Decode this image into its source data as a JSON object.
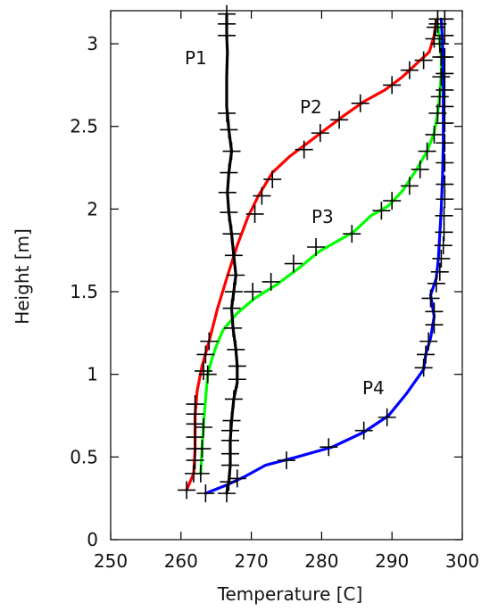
{
  "chart_data": {
    "type": "line",
    "title": "",
    "xlabel": "Temperature [C]",
    "ylabel": "Height [m]",
    "xlim": [
      250,
      300
    ],
    "ylim": [
      0,
      3.2
    ],
    "xticks": [
      "250",
      "260",
      "270",
      "280",
      "290",
      "300"
    ],
    "yticks": [
      "0",
      "0.5",
      "1",
      "1.5",
      "2",
      "2.5",
      "3"
    ],
    "grid": false,
    "legend": "none; series labelled inline",
    "series": [
      {
        "name": "P1",
        "color": "#000000",
        "points": [
          [
            266.5,
            0.28
          ],
          [
            266.8,
            0.35
          ],
          [
            267.0,
            0.45
          ],
          [
            267.0,
            0.6
          ],
          [
            267.2,
            0.72
          ],
          [
            267.5,
            0.85
          ],
          [
            268.0,
            0.95
          ],
          [
            268.0,
            1.05
          ],
          [
            267.8,
            1.15
          ],
          [
            267.4,
            1.28
          ],
          [
            267.2,
            1.4
          ],
          [
            267.5,
            1.5
          ],
          [
            267.8,
            1.6
          ],
          [
            267.5,
            1.72
          ],
          [
            267.2,
            1.85
          ],
          [
            266.8,
            1.98
          ],
          [
            266.6,
            2.1
          ],
          [
            266.8,
            2.22
          ],
          [
            267.2,
            2.35
          ],
          [
            266.8,
            2.48
          ],
          [
            266.5,
            2.62
          ],
          [
            266.5,
            2.8
          ],
          [
            266.6,
            2.95
          ],
          [
            266.5,
            3.05
          ],
          [
            266.5,
            3.18
          ]
        ],
        "markers": [
          [
            266.5,
            0.28
          ],
          [
            266.8,
            0.35
          ],
          [
            267.0,
            0.45
          ],
          [
            267.0,
            0.52
          ],
          [
            267.0,
            0.6
          ],
          [
            267.0,
            0.66
          ],
          [
            267.2,
            0.72
          ],
          [
            267.5,
            0.85
          ],
          [
            268.0,
            0.97
          ],
          [
            268.0,
            1.05
          ],
          [
            267.8,
            1.15
          ],
          [
            267.4,
            1.28
          ],
          [
            267.2,
            1.4
          ],
          [
            267.5,
            1.5
          ],
          [
            267.8,
            1.6
          ],
          [
            267.5,
            1.72
          ],
          [
            267.2,
            1.85
          ],
          [
            266.8,
            1.98
          ],
          [
            266.6,
            2.1
          ],
          [
            266.8,
            2.22
          ],
          [
            267.2,
            2.35
          ],
          [
            266.8,
            2.48
          ],
          [
            266.5,
            2.58
          ],
          [
            266.5,
            3.05
          ],
          [
            266.5,
            3.12
          ],
          [
            266.5,
            3.18
          ]
        ]
      },
      {
        "name": "P2",
        "color": "#ff0000",
        "points": [
          [
            260.8,
            0.3
          ],
          [
            261.8,
            0.4
          ],
          [
            262.0,
            0.55
          ],
          [
            262.0,
            0.75
          ],
          [
            262.3,
            0.9
          ],
          [
            263.0,
            1.05
          ],
          [
            264.0,
            1.2
          ],
          [
            265.2,
            1.4
          ],
          [
            266.5,
            1.58
          ],
          [
            268.0,
            1.78
          ],
          [
            269.5,
            1.95
          ],
          [
            271.0,
            2.08
          ],
          [
            273.0,
            2.22
          ],
          [
            275.5,
            2.32
          ],
          [
            278.0,
            2.4
          ],
          [
            280.5,
            2.48
          ],
          [
            283.0,
            2.56
          ],
          [
            286.0,
            2.65
          ],
          [
            289.0,
            2.72
          ],
          [
            291.5,
            2.8
          ],
          [
            293.5,
            2.88
          ],
          [
            295.3,
            2.95
          ],
          [
            296.0,
            3.05
          ],
          [
            296.3,
            3.14
          ]
        ],
        "markers": [
          [
            260.8,
            0.3
          ],
          [
            261.8,
            0.4
          ],
          [
            262.0,
            0.48
          ],
          [
            262.0,
            0.55
          ],
          [
            262.0,
            0.62
          ],
          [
            262.0,
            0.7
          ],
          [
            262.0,
            0.76
          ],
          [
            262.0,
            0.82
          ],
          [
            263.2,
            1.02
          ],
          [
            263.5,
            1.12
          ],
          [
            264.0,
            1.2
          ],
          [
            270.5,
            1.97
          ],
          [
            271.5,
            2.08
          ],
          [
            273.0,
            2.18
          ],
          [
            277.5,
            2.36
          ],
          [
            279.8,
            2.46
          ],
          [
            282.5,
            2.54
          ],
          [
            285.5,
            2.64
          ],
          [
            290.0,
            2.75
          ],
          [
            292.5,
            2.84
          ],
          [
            294.5,
            2.9
          ],
          [
            296.0,
            3.03
          ],
          [
            296.2,
            3.1
          ],
          [
            296.5,
            3.15
          ]
        ]
      },
      {
        "name": "P3",
        "color": "#00ff00",
        "points": [
          [
            262.8,
            0.4
          ],
          [
            263.0,
            0.55
          ],
          [
            263.2,
            0.7
          ],
          [
            263.5,
            0.85
          ],
          [
            263.8,
            1.0
          ],
          [
            264.3,
            1.08
          ],
          [
            265.0,
            1.17
          ],
          [
            266.0,
            1.27
          ],
          [
            268.0,
            1.37
          ],
          [
            270.5,
            1.46
          ],
          [
            273.5,
            1.54
          ],
          [
            277.0,
            1.65
          ],
          [
            279.5,
            1.74
          ],
          [
            282.0,
            1.8
          ],
          [
            284.5,
            1.86
          ],
          [
            287.0,
            1.96
          ],
          [
            289.5,
            2.02
          ],
          [
            291.5,
            2.11
          ],
          [
            293.5,
            2.24
          ],
          [
            295.0,
            2.35
          ],
          [
            296.0,
            2.46
          ],
          [
            296.5,
            2.58
          ],
          [
            296.8,
            2.7
          ],
          [
            297.0,
            2.82
          ],
          [
            297.0,
            2.92
          ],
          [
            296.8,
            3.0
          ],
          [
            296.5,
            3.12
          ]
        ],
        "markers": [
          [
            262.8,
            0.4
          ],
          [
            263.0,
            0.55
          ],
          [
            263.2,
            0.68
          ],
          [
            263.8,
            1.0
          ],
          [
            270.2,
            1.5
          ],
          [
            272.8,
            1.56
          ],
          [
            276.0,
            1.67
          ],
          [
            279.2,
            1.77
          ],
          [
            284.3,
            1.85
          ],
          [
            288.5,
            1.99
          ],
          [
            290.0,
            2.05
          ],
          [
            292.5,
            2.14
          ],
          [
            294.0,
            2.24
          ],
          [
            295.0,
            2.35
          ],
          [
            296.0,
            2.45
          ],
          [
            296.5,
            2.58
          ],
          [
            296.8,
            2.68
          ],
          [
            297.0,
            2.8
          ],
          [
            297.0,
            2.92
          ],
          [
            296.8,
            3.0
          ],
          [
            296.5,
            3.12
          ]
        ]
      },
      {
        "name": "P4",
        "color": "#0000ff",
        "points": [
          [
            263.5,
            0.28
          ],
          [
            266.5,
            0.33
          ],
          [
            269.0,
            0.38
          ],
          [
            272.0,
            0.45
          ],
          [
            276.5,
            0.5
          ],
          [
            281.5,
            0.56
          ],
          [
            286.0,
            0.65
          ],
          [
            289.5,
            0.75
          ],
          [
            292.0,
            0.88
          ],
          [
            294.5,
            1.03
          ],
          [
            294.8,
            1.12
          ],
          [
            295.5,
            1.22
          ],
          [
            296.0,
            1.35
          ],
          [
            295.5,
            1.48
          ],
          [
            296.3,
            1.58
          ],
          [
            296.6,
            1.7
          ],
          [
            296.8,
            1.85
          ],
          [
            297.0,
            2.0
          ],
          [
            297.2,
            2.2
          ],
          [
            297.3,
            2.4
          ],
          [
            297.3,
            2.6
          ],
          [
            297.3,
            2.8
          ],
          [
            297.2,
            3.0
          ],
          [
            297.0,
            3.15
          ]
        ],
        "markers": [
          [
            263.5,
            0.28
          ],
          [
            268.0,
            0.37
          ],
          [
            275.0,
            0.48
          ],
          [
            281.0,
            0.56
          ],
          [
            286.0,
            0.66
          ],
          [
            289.3,
            0.74
          ],
          [
            294.5,
            1.04
          ],
          [
            294.8,
            1.12
          ],
          [
            295.2,
            1.2
          ],
          [
            296.0,
            1.3
          ],
          [
            296.0,
            1.38
          ],
          [
            295.5,
            1.46
          ],
          [
            296.3,
            1.55
          ],
          [
            296.8,
            1.62
          ],
          [
            297.0,
            1.7
          ],
          [
            297.3,
            1.78
          ],
          [
            297.4,
            1.86
          ],
          [
            297.4,
            1.96
          ],
          [
            297.5,
            2.06
          ],
          [
            297.5,
            2.15
          ],
          [
            297.5,
            2.28
          ],
          [
            297.5,
            2.4
          ],
          [
            297.5,
            2.52
          ],
          [
            297.5,
            2.62
          ],
          [
            297.5,
            2.72
          ],
          [
            297.5,
            2.82
          ],
          [
            297.5,
            2.92
          ],
          [
            297.5,
            3.05
          ],
          [
            297.5,
            3.15
          ]
        ]
      }
    ]
  }
}
